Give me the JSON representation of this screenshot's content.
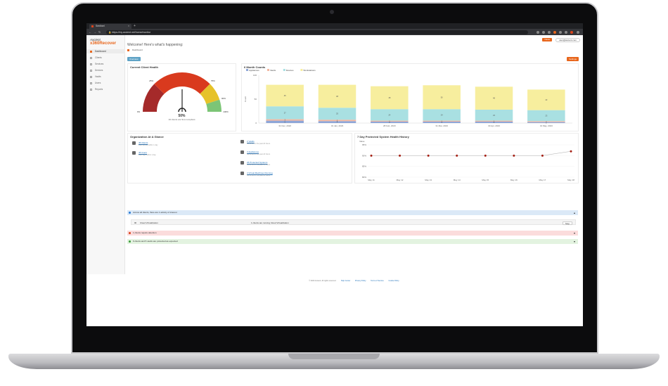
{
  "browser": {
    "tab_title": "Sentinel",
    "url": "https://my.axcient.net/home/monitor",
    "new_tab": "+"
  },
  "app": {
    "logo_line1": "Axcient",
    "logo_line2": "x360Recover",
    "welcome": "Welcome! Here's what's happening:",
    "news_button": "News",
    "user_email": "user@axcient.com",
    "breadcrumb": "Dashboard",
    "filter_button": "Overview",
    "settings_button": "Settings"
  },
  "sidebar": {
    "items": [
      {
        "label": "Dashboard",
        "active": true
      },
      {
        "label": "Clients",
        "active": false
      },
      {
        "label": "Services",
        "active": false
      },
      {
        "label": "Devices",
        "active": false
      },
      {
        "label": "Vaults",
        "active": false
      },
      {
        "label": "Users",
        "active": false
      },
      {
        "label": "Reports",
        "active": false
      }
    ]
  },
  "gauge": {
    "title": "Current Client Health",
    "value_label": "50%",
    "sub_label": "All clients are SLA compliant",
    "fraction": 0.5,
    "ticks": [
      "0%",
      "25%",
      "50%",
      "75%",
      "90%",
      "100%"
    ],
    "colors": [
      "#a52a2a",
      "#d93a1e",
      "#e6c229",
      "#7cc576"
    ]
  },
  "chart_data": {
    "type": "bar",
    "title": "6 Month Counts",
    "stacked": true,
    "ylabel": "Count",
    "ylim": [
      0,
      100
    ],
    "yticks": [
      "0",
      "50",
      "100"
    ],
    "categories": [
      "31 Dec, 2022",
      "31 Jan, 2023",
      "28 Feb, 2023",
      "31 Mar, 2023",
      "30 Apr, 2023",
      "31 May, 2023"
    ],
    "series": [
      {
        "name": "Appliances",
        "color": "#8ea6d8",
        "values": [
          5,
          4,
          3,
          3,
          3,
          2
        ]
      },
      {
        "name": "Vaults",
        "color": "#f2b8a2",
        "values": [
          3,
          3,
          2,
          2,
          2,
          2
        ]
      },
      {
        "name": "Devices",
        "color": "#a9e0e2",
        "values": [
          27,
          25,
          24,
          24,
          23,
          23
        ]
      },
      {
        "name": "Workstations",
        "color": "#f7ee9e",
        "values": [
          45,
          48,
          48,
          50,
          48,
          43
        ]
      }
    ],
    "legend": "top-left",
    "grid": false
  },
  "org": {
    "title": "Organization At A Glance",
    "left_items": [
      {
        "icon": "building-icon",
        "link": "45 Clients",
        "sub": "Last backup within 1 day"
      },
      {
        "icon": "user-icon",
        "link": "45 Users",
        "sub": "Last login within 1 day"
      }
    ],
    "right_items": [
      {
        "icon": "server-icon",
        "link": "2 Vaults",
        "sub": "No errors in the past 24 hours"
      },
      {
        "icon": "appliance-icon",
        "link": "3 Appliances",
        "sub": "No errors in the past 24 hours"
      },
      {
        "icon": "monitor-icon",
        "link": "26 Protected Systems",
        "sub": "No errors in the past 24 hours"
      },
      {
        "icon": "vm-icon",
        "link": "4 Virtual Machines Running",
        "sub": "No errors in the past 24 hours"
      }
    ]
  },
  "history": {
    "title": "7 Day Protected System Health History",
    "ylabel": "Value",
    "yticks": [
      "80%",
      "85%",
      "90%",
      "95%"
    ],
    "chart_data": {
      "type": "line",
      "x": [
        "May 11",
        "May 12",
        "May 13",
        "May 14",
        "May 15",
        "May 16",
        "May 17",
        "May 18"
      ],
      "values": [
        90,
        90,
        90,
        90,
        90,
        90,
        90,
        92
      ],
      "ylim": [
        80,
        95
      ],
      "point_color": "#a52014"
    }
  },
  "alerts": {
    "info": {
      "text": "Across all clients, there are 1 activity of interest",
      "bg": "#dbe9f7",
      "icon_color": "#2b7bd6"
    },
    "info_row": {
      "label": "Cloud Virtualization",
      "message": "1 clients are running Cloud Virtualization",
      "action": "Stop"
    },
    "warning": {
      "text": "1 clients require attention",
      "bg": "#fbdcdc",
      "icon_color": "#d9441c"
    },
    "success": {
      "text": "6 clients and 5 vaults are protected as expected",
      "bg": "#e3f3e0",
      "icon_color": "#3c9d3c"
    }
  },
  "footer": {
    "copyright": "© 2023 Axcient. All rights reserved.",
    "links": [
      "Help Center",
      "Privacy Policy",
      "Terms of Service",
      "Cookie Policy"
    ]
  }
}
